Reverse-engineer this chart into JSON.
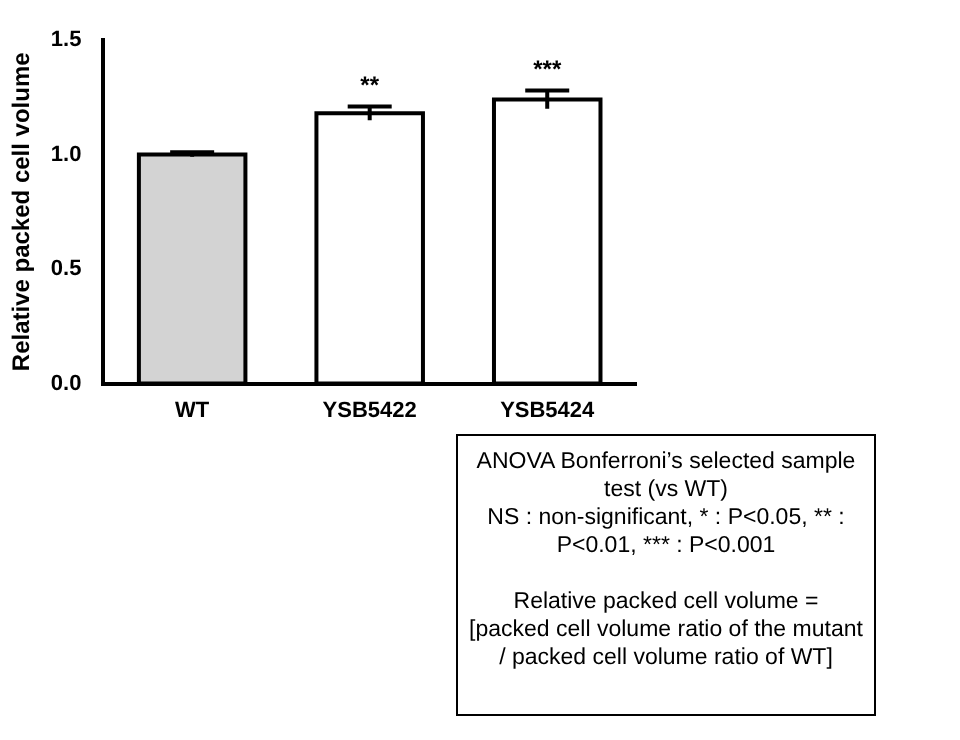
{
  "chart_data": {
    "type": "bar",
    "ylabel": "Relative packed cell volume",
    "categories": [
      "WT",
      "YSB5422",
      "YSB5424"
    ],
    "values": [
      1.0,
      1.18,
      1.24
    ],
    "colors": [
      "#d3d3d3",
      "#ffffff",
      "#ffffff"
    ],
    "errors": [
      0.01,
      0.03,
      0.04
    ],
    "ylim": [
      0,
      1.5
    ],
    "yticks": [
      {
        "value": 0,
        "label": "0.0"
      },
      {
        "value": 0.5,
        "label": "0.5"
      },
      {
        "value": 1,
        "label": "1.0"
      },
      {
        "value": 1.5,
        "label": "1.5"
      }
    ],
    "grid": false,
    "legend": false,
    "annotations": [
      {
        "text": "**",
        "x": "YSB5422",
        "y": 1.21
      },
      {
        "text": "***",
        "x": "YSB5424",
        "y": 1.28
      },
      "ANOVA Bonferroni’s selected sample test (vs WT)\nNS : non-significant, * : P<0.05, ** : P<0.01, *** : P<0.001",
      "Relative packed cell volume =\n[packed cell volume ratio of the mutant\n/ packed cell volume ratio of WT]"
    ]
  }
}
